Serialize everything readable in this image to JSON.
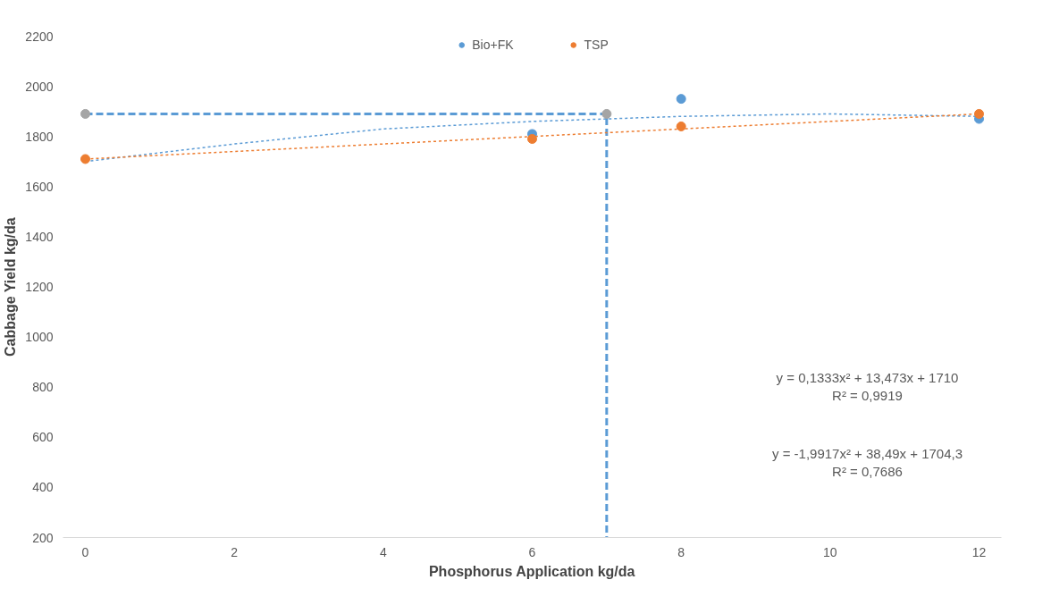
{
  "chart_data": {
    "type": "scatter",
    "xlabel": "Phosphorus Application kg/da",
    "ylabel": "Cabbage Yield kg/da",
    "xlim": [
      -0.3,
      12.3
    ],
    "xticks": [
      0,
      2,
      4,
      6,
      8,
      10,
      12
    ],
    "ylim": [
      200,
      2200
    ],
    "yticks": [
      200,
      400,
      600,
      800,
      1000,
      1200,
      1400,
      1600,
      1800,
      2000,
      2200
    ],
    "grid": false,
    "legend": "top",
    "marker": "circle",
    "series": [
      {
        "type": "line",
        "color": "#5b9bd5",
        "x": [
          0,
          7,
          7
        ],
        "values": [
          1890,
          1890,
          200
        ],
        "line_style": "dashed",
        "marker": "none"
      },
      {
        "type": "line",
        "color": "#5b9bd5",
        "x": [
          0,
          2,
          4,
          6,
          8,
          10,
          12
        ],
        "values": [
          1700,
          1770,
          1830,
          1860,
          1880,
          1890,
          1880
        ],
        "line_style": "dotted",
        "marker": "none"
      },
      {
        "type": "line",
        "color": "#ed7d31",
        "x": [
          0,
          2,
          4,
          6,
          8,
          10,
          12
        ],
        "values": [
          1710,
          1740,
          1770,
          1800,
          1830,
          1860,
          1890
        ],
        "line_style": "dotted",
        "marker": "none"
      },
      {
        "name": "Bio+FK",
        "color": "#5b9bd5",
        "x": [
          6,
          8,
          12
        ],
        "values": [
          1810,
          1950,
          1870
        ]
      },
      {
        "name": "TSP",
        "color": "#ed7d31",
        "x": [
          0,
          6,
          8,
          12
        ],
        "values": [
          1710,
          1790,
          1840,
          1890
        ]
      },
      {
        "color": "#a5a5a5",
        "x": [
          0,
          7
        ],
        "values": [
          1890,
          1890
        ]
      }
    ],
    "annotations": [
      "y = 0,1333x² + 13,473x + 1710\nR² = 0,9919",
      "y = -1,9917x² + 38,49x + 1704,3\nR² = 0,7686"
    ]
  }
}
